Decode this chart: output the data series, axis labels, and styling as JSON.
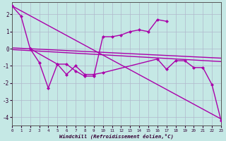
{
  "xlabel": "Windchill (Refroidissement éolien,°C)",
  "xlim": [
    0,
    23
  ],
  "ylim": [
    -4.5,
    2.7
  ],
  "xticks": [
    0,
    1,
    2,
    3,
    4,
    5,
    6,
    7,
    8,
    9,
    10,
    11,
    12,
    13,
    14,
    15,
    16,
    17,
    18,
    19,
    20,
    21,
    22,
    23
  ],
  "yticks": [
    -4,
    -3,
    -2,
    -1,
    0,
    1,
    2
  ],
  "background_color": "#c5e8e5",
  "grid_color": "#b0b8cc",
  "line_color": "#aa00aa",
  "series_data": [
    {
      "x": [
        0,
        23
      ],
      "y": [
        2.5,
        -4.1
      ],
      "marker": false,
      "lw": 1.0
    },
    {
      "x": [
        0,
        23
      ],
      "y": [
        0.05,
        -0.55
      ],
      "marker": false,
      "lw": 1.0
    },
    {
      "x": [
        0,
        23
      ],
      "y": [
        -0.05,
        -0.75
      ],
      "marker": false,
      "lw": 1.0
    },
    {
      "comment": "Data line 1: starts high x=0 y~2.5, x=1 y~1.9, then x=2 near 0, skips, x=3 y~-0.8, x=4 y~-2.3, x=5 y~-0.9, x=6 y~-0.9, x=7 y~-1.3, x=8 y~-1.6, x=9 y~-1.6, x=10 y~0.7, x=11 y~0.7, x=12 y~0.8, x=13 y~1.0, x=14 y~1.1, x=15 y~1.0, x=16 y~1.7, x=17 y~1.6",
      "x": [
        0,
        1,
        2,
        3,
        4,
        5,
        6,
        7,
        8,
        9,
        10,
        11,
        12,
        13,
        14,
        15,
        16,
        17
      ],
      "y": [
        2.5,
        1.9,
        0.0,
        -0.8,
        -2.3,
        -0.9,
        -0.9,
        -1.3,
        -1.6,
        -1.6,
        0.7,
        0.7,
        0.8,
        1.0,
        1.1,
        1.0,
        1.7,
        1.6
      ],
      "marker": true,
      "lw": 1.0
    },
    {
      "comment": "Data line 2: x=2 y~0.0, x=5 y~-0.9, x=6 y~-1.5, x=7 y~-1.0, x=8 y~-1.5, x=9 y~-1.5, x=10 y~-1.4, x=16 y~-0.6, x=17 y~-1.2, x=18 y~-0.7, x=19 y~-0.7, x=20 y~-1.1, x=21 y~-1.1, x=22 y~-2.1, x=23 y~-4.2",
      "x": [
        2,
        5,
        6,
        7,
        8,
        9,
        10,
        16,
        17,
        18,
        19,
        20,
        21,
        22,
        23
      ],
      "y": [
        0.0,
        -0.9,
        -1.5,
        -1.0,
        -1.5,
        -1.5,
        -1.4,
        -0.6,
        -1.2,
        -0.7,
        -0.7,
        -1.1,
        -1.1,
        -2.1,
        -4.2
      ],
      "marker": true,
      "lw": 1.0
    }
  ]
}
